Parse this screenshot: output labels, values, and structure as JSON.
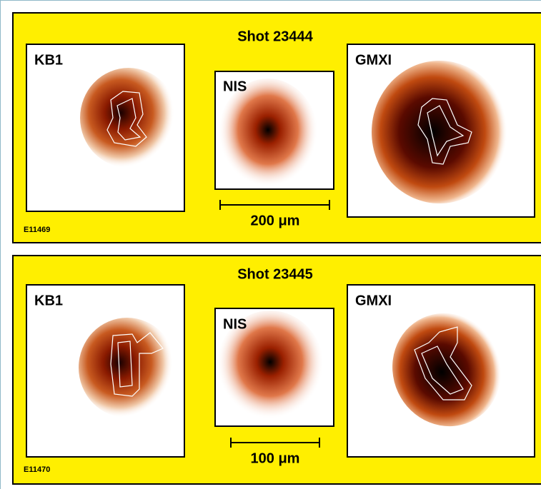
{
  "panels": [
    {
      "title": "Shot 23444",
      "images": [
        {
          "label": "KB1"
        },
        {
          "label": "NIS"
        },
        {
          "label": "GMXI"
        }
      ],
      "scale_bar": "200 μm",
      "figure_id": "E11469"
    },
    {
      "title": "Shot 23445",
      "images": [
        {
          "label": "KB1"
        },
        {
          "label": "NIS"
        },
        {
          "label": "GMXI"
        }
      ],
      "scale_bar": "100 μm",
      "figure_id": "E11470"
    }
  ]
}
